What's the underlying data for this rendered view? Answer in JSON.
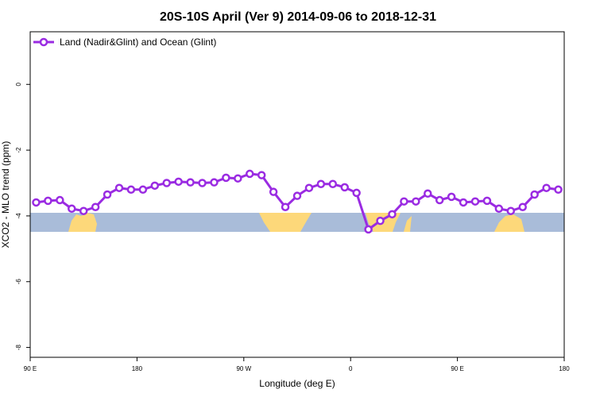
{
  "chart_data": {
    "type": "line",
    "title": "20S-10S April (Ver 9)   2014-09-06 to 2018-12-31",
    "x_label": "Longitude (deg E)",
    "y_label": "XCO2 - MLO trend (ppm)",
    "legend_position": "top-left",
    "x": [
      95,
      105,
      115,
      125,
      135,
      145,
      155,
      165,
      175,
      185,
      195,
      205,
      215,
      225,
      235,
      245,
      255,
      265,
      275,
      285,
      295,
      305,
      315,
      325,
      335,
      345,
      355,
      365,
      375,
      385,
      395,
      405,
      415,
      425,
      435,
      445,
      455,
      465,
      475,
      485,
      495,
      505,
      515,
      525,
      535
    ],
    "series": [
      {
        "name": "Land (Nadir&Glint) and Ocean (Glint)",
        "color": "#9a2be2",
        "values": [
          -3.59,
          -3.54,
          -3.52,
          -3.78,
          -3.85,
          -3.73,
          -3.35,
          -3.15,
          -3.2,
          -3.2,
          -3.08,
          -3.0,
          -2.96,
          -2.98,
          -3.0,
          -2.98,
          -2.84,
          -2.86,
          -2.72,
          -2.76,
          -3.27,
          -3.73,
          -3.39,
          -3.15,
          -3.03,
          -3.03,
          -3.13,
          -3.3,
          -4.41,
          -4.15,
          -3.95,
          -3.56,
          -3.56,
          -3.32,
          -3.52,
          -3.42,
          -3.59,
          -3.56,
          -3.54,
          -3.78,
          -3.85,
          -3.73,
          -3.35,
          -3.15,
          -3.2
        ]
      }
    ],
    "xlim": [
      90,
      540
    ],
    "ylim": [
      -8.3,
      1.6
    ],
    "xticks": [
      {
        "value": 90,
        "label": "90 E"
      },
      180,
      {
        "value": 270,
        "label": "90 W"
      },
      {
        "value": 360,
        "label": "0"
      },
      {
        "value": 450,
        "label": "90 E"
      },
      {
        "value": 540,
        "label": "180"
      }
    ],
    "yticks": [
      0,
      -2,
      -4,
      -6,
      -8
    ]
  }
}
